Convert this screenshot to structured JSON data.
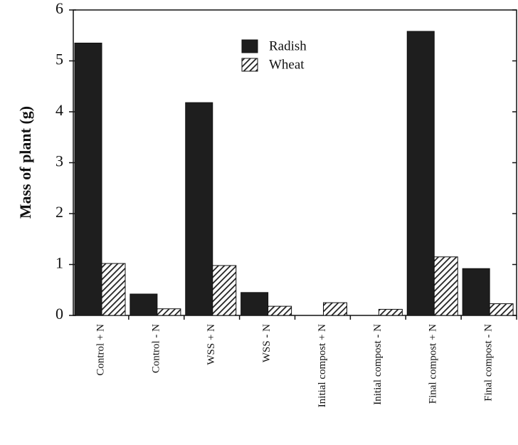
{
  "chart_data": {
    "type": "bar",
    "y_label": "Mass of plant (g)",
    "categories": [
      "Control + N",
      "Control - N",
      "WSS + N",
      "WSS - N",
      "Initial compost + N",
      "Initial compost - N",
      "Final compost + N",
      "Final compost - N"
    ],
    "series": [
      {
        "name": "Radish",
        "color": "#1e1e1e",
        "values": [
          5.35,
          0.42,
          4.18,
          0.45,
          0,
          0,
          5.58,
          0.92
        ]
      },
      {
        "name": "Wheat",
        "color": "#1e1e1e",
        "pattern": "hatch",
        "values": [
          1.02,
          0.13,
          0.98,
          0.18,
          0.25,
          0.12,
          1.15,
          0.23
        ]
      }
    ],
    "ylim": [
      0,
      6
    ],
    "yticks": [
      0,
      1,
      2,
      3,
      4,
      5,
      6
    ],
    "legend": "top"
  }
}
